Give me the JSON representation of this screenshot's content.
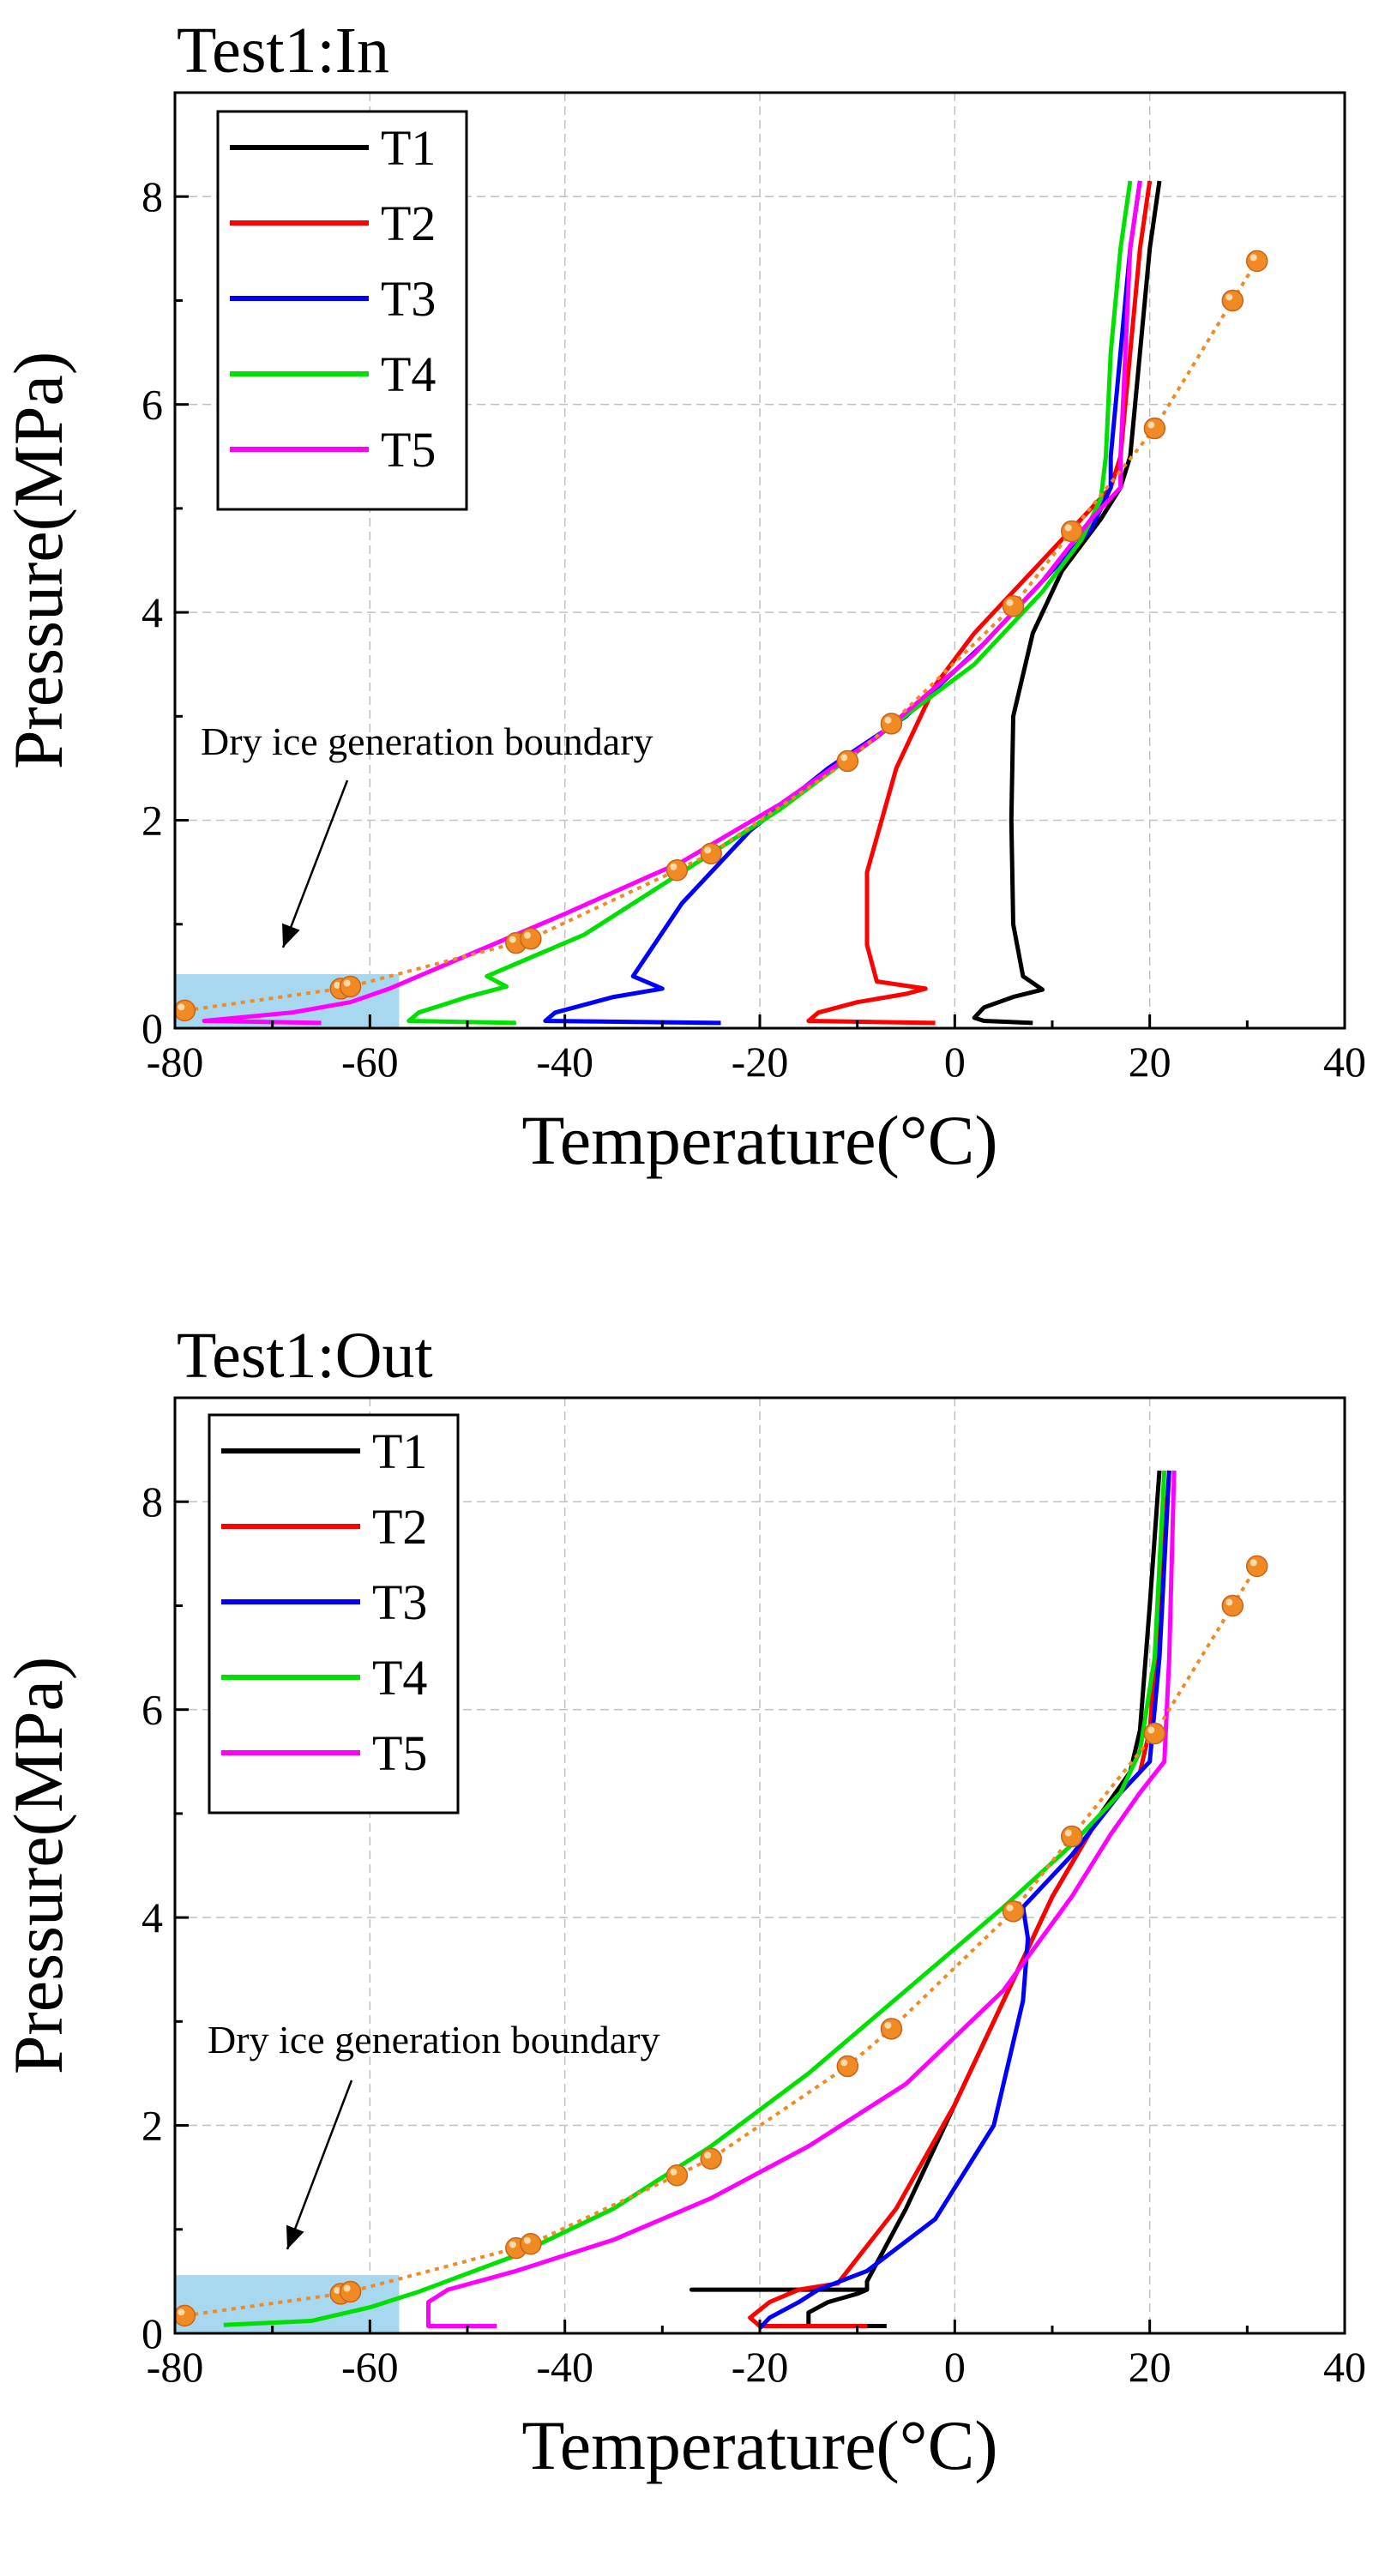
{
  "charts": [
    {
      "type": "line",
      "title": "Test1:In",
      "xlabel": "Temperature(°C)",
      "ylabel": "Pressure(MPa)",
      "xlim": [
        -80,
        40
      ],
      "ylim": [
        0,
        9
      ],
      "xticks": [
        -80,
        -60,
        -40,
        -20,
        0,
        20,
        40
      ],
      "yticks": [
        0,
        2,
        4,
        6,
        8
      ],
      "xtick_labels": [
        "-80",
        "-60",
        "-40",
        "-20",
        "0",
        "20",
        "40"
      ],
      "ytick_labels": [
        "0",
        "2",
        "4",
        "6",
        "8"
      ],
      "grid": true,
      "legend_position": "top-left",
      "annotation": "Dry ice generation boundary",
      "shaded_region": {
        "x": [
          -80,
          -57
        ],
        "y": [
          0,
          0.52
        ],
        "color": "#a8d8f0"
      },
      "boundary_series": {
        "color": "#f08a24",
        "points": [
          [
            -79,
            0.17
          ],
          [
            -63,
            0.38
          ],
          [
            -62,
            0.4
          ],
          [
            -45,
            0.82
          ],
          [
            -43.5,
            0.86
          ],
          [
            -28.5,
            1.52
          ],
          [
            -25,
            1.68
          ],
          [
            -11,
            2.57
          ],
          [
            -6.5,
            2.93
          ],
          [
            6,
            4.06
          ],
          [
            12,
            4.78
          ],
          [
            20.5,
            5.77
          ],
          [
            28.5,
            7.0
          ],
          [
            31,
            7.38
          ]
        ]
      },
      "series": [
        {
          "name": "T1",
          "color": "#000000",
          "points": [
            [
              8,
              0.05
            ],
            [
              3,
              0.07
            ],
            [
              2,
              0.1
            ],
            [
              3,
              0.2
            ],
            [
              6,
              0.3
            ],
            [
              9,
              0.37
            ],
            [
              7,
              0.5
            ],
            [
              6,
              1.0
            ],
            [
              5.8,
              2.0
            ],
            [
              6,
              3.0
            ],
            [
              8,
              3.8
            ],
            [
              11,
              4.4
            ],
            [
              15,
              4.9
            ],
            [
              17,
              5.2
            ],
            [
              18,
              5.5
            ],
            [
              19,
              6.5
            ],
            [
              20,
              7.5
            ],
            [
              21,
              8.15
            ]
          ]
        },
        {
          "name": "T2",
          "color": "#ff0000",
          "points": [
            [
              -2,
              0.05
            ],
            [
              -15,
              0.07
            ],
            [
              -14,
              0.15
            ],
            [
              -10,
              0.25
            ],
            [
              -5,
              0.33
            ],
            [
              -3,
              0.38
            ],
            [
              -8,
              0.45
            ],
            [
              -9,
              0.8
            ],
            [
              -9,
              1.5
            ],
            [
              -6,
              2.5
            ],
            [
              -2,
              3.3
            ],
            [
              2,
              3.8
            ],
            [
              7,
              4.3
            ],
            [
              12,
              4.8
            ],
            [
              16,
              5.2
            ],
            [
              17,
              5.5
            ],
            [
              18,
              6.5
            ],
            [
              19,
              7.5
            ],
            [
              20,
              8.15
            ]
          ]
        },
        {
          "name": "T3",
          "color": "#0000ff",
          "points": [
            [
              -24,
              0.05
            ],
            [
              -42,
              0.07
            ],
            [
              -41,
              0.15
            ],
            [
              -35,
              0.3
            ],
            [
              -30,
              0.38
            ],
            [
              -33,
              0.5
            ],
            [
              -28,
              1.2
            ],
            [
              -21,
              1.9
            ],
            [
              -13,
              2.5
            ],
            [
              -5,
              3.0
            ],
            [
              3,
              3.7
            ],
            [
              10,
              4.4
            ],
            [
              14,
              4.8
            ],
            [
              16,
              5.2
            ],
            [
              16,
              5.5
            ],
            [
              17,
              6.5
            ],
            [
              18,
              7.5
            ],
            [
              19,
              8.15
            ]
          ]
        },
        {
          "name": "T4",
          "color": "#00e000",
          "points": [
            [
              -45,
              0.05
            ],
            [
              -56,
              0.07
            ],
            [
              -55,
              0.15
            ],
            [
              -50,
              0.3
            ],
            [
              -46,
              0.4
            ],
            [
              -48,
              0.5
            ],
            [
              -38,
              0.9
            ],
            [
              -28,
              1.5
            ],
            [
              -18,
              2.1
            ],
            [
              -8,
              2.8
            ],
            [
              2,
              3.5
            ],
            [
              9,
              4.2
            ],
            [
              13,
              4.7
            ],
            [
              15,
              5.1
            ],
            [
              15.5,
              5.5
            ],
            [
              16,
              6.5
            ],
            [
              17,
              7.5
            ],
            [
              18,
              8.15
            ]
          ]
        },
        {
          "name": "T5",
          "color": "#ff00ff",
          "points": [
            [
              -65,
              0.05
            ],
            [
              -77,
              0.07
            ],
            [
              -68,
              0.15
            ],
            [
              -62,
              0.25
            ],
            [
              -58,
              0.38
            ],
            [
              -50,
              0.7
            ],
            [
              -40,
              1.1
            ],
            [
              -28,
              1.6
            ],
            [
              -18,
              2.15
            ],
            [
              -8,
              2.8
            ],
            [
              2,
              3.6
            ],
            [
              9,
              4.3
            ],
            [
              14,
              4.9
            ],
            [
              17,
              5.2
            ],
            [
              17,
              5.5
            ],
            [
              17.5,
              6.5
            ],
            [
              18,
              7.5
            ],
            [
              19,
              8.15
            ]
          ]
        }
      ]
    },
    {
      "type": "line",
      "title": "Test1:Out",
      "xlabel": "Temperature(°C)",
      "ylabel": "Pressure(MPa)",
      "xlim": [
        -80,
        40
      ],
      "ylim": [
        0,
        9
      ],
      "xticks": [
        -80,
        -60,
        -40,
        -20,
        0,
        20,
        40
      ],
      "yticks": [
        0,
        2,
        4,
        6,
        8
      ],
      "xtick_labels": [
        "-80",
        "-60",
        "-40",
        "-20",
        "0",
        "20",
        "40"
      ],
      "ytick_labels": [
        "0",
        "2",
        "4",
        "6",
        "8"
      ],
      "grid": true,
      "legend_position": "top-left",
      "annotation": "Dry ice generation boundary",
      "shaded_region": {
        "x": [
          -80,
          -57
        ],
        "y": [
          0,
          0.56
        ],
        "color": "#a8d8f0"
      },
      "boundary_series": {
        "color": "#f08a24",
        "points": [
          [
            -79,
            0.17
          ],
          [
            -63,
            0.38
          ],
          [
            -62,
            0.4
          ],
          [
            -45,
            0.82
          ],
          [
            -43.5,
            0.86
          ],
          [
            -28.5,
            1.52
          ],
          [
            -25,
            1.68
          ],
          [
            -11,
            2.57
          ],
          [
            -6.5,
            2.93
          ],
          [
            6,
            4.06
          ],
          [
            12,
            4.78
          ],
          [
            20.5,
            5.77
          ],
          [
            28.5,
            7.0
          ],
          [
            31,
            7.38
          ]
        ]
      },
      "series": [
        {
          "name": "T1",
          "color": "#000000",
          "points": [
            [
              -7,
              0.07
            ],
            [
              -15,
              0.07
            ],
            [
              -15,
              0.2
            ],
            [
              -13,
              0.3
            ],
            [
              -10,
              0.38
            ],
            [
              -9,
              0.42
            ],
            [
              -27,
              0.42
            ],
            [
              -9,
              0.42
            ],
            [
              -9,
              0.5
            ],
            [
              -5,
              1.2
            ],
            [
              0,
              2.2
            ],
            [
              5,
              3.2
            ],
            [
              10,
              4.2
            ],
            [
              15,
              5.0
            ],
            [
              18,
              5.4
            ],
            [
              19,
              5.8
            ],
            [
              20,
              7.0
            ],
            [
              21,
              8.3
            ]
          ]
        },
        {
          "name": "T2",
          "color": "#ff0000",
          "points": [
            [
              -9,
              0.07
            ],
            [
              -20,
              0.07
            ],
            [
              -21,
              0.15
            ],
            [
              -19,
              0.3
            ],
            [
              -16,
              0.42
            ],
            [
              -12,
              0.48
            ],
            [
              -6,
              1.2
            ],
            [
              0,
              2.2
            ],
            [
              5,
              3.2
            ],
            [
              10,
              4.2
            ],
            [
              15,
              5.0
            ],
            [
              19,
              5.4
            ],
            [
              20,
              5.8
            ],
            [
              21,
              7.0
            ],
            [
              22,
              8.3
            ]
          ]
        },
        {
          "name": "T3",
          "color": "#0000ff",
          "points": [
            [
              -20,
              0.05
            ],
            [
              -19,
              0.15
            ],
            [
              -16,
              0.3
            ],
            [
              -14,
              0.42
            ],
            [
              -9,
              0.6
            ],
            [
              -2,
              1.1
            ],
            [
              4,
              2.0
            ],
            [
              7,
              3.2
            ],
            [
              7.5,
              3.8
            ],
            [
              7,
              4.1
            ],
            [
              12,
              4.6
            ],
            [
              17,
              5.2
            ],
            [
              20,
              5.5
            ],
            [
              21,
              6.5
            ],
            [
              22,
              8.3
            ]
          ]
        },
        {
          "name": "T4",
          "color": "#00e000",
          "points": [
            [
              -75,
              0.08
            ],
            [
              -66,
              0.12
            ],
            [
              -60,
              0.25
            ],
            [
              -55,
              0.4
            ],
            [
              -45,
              0.75
            ],
            [
              -35,
              1.2
            ],
            [
              -25,
              1.8
            ],
            [
              -15,
              2.5
            ],
            [
              -5,
              3.3
            ],
            [
              5,
              4.1
            ],
            [
              12,
              4.7
            ],
            [
              17,
              5.2
            ],
            [
              19,
              5.6
            ],
            [
              20.5,
              6.5
            ],
            [
              21.5,
              8.3
            ]
          ]
        },
        {
          "name": "T5",
          "color": "#ff00ff",
          "points": [
            [
              -47,
              0.07
            ],
            [
              -54,
              0.07
            ],
            [
              -54,
              0.3
            ],
            [
              -52,
              0.42
            ],
            [
              -45,
              0.6
            ],
            [
              -35,
              0.9
            ],
            [
              -25,
              1.3
            ],
            [
              -15,
              1.8
            ],
            [
              -5,
              2.4
            ],
            [
              5,
              3.3
            ],
            [
              12,
              4.2
            ],
            [
              16,
              4.8
            ],
            [
              19,
              5.2
            ],
            [
              21.5,
              5.5
            ],
            [
              22,
              6.5
            ],
            [
              22.5,
              8.3
            ]
          ]
        }
      ]
    }
  ],
  "chart_data": [
    {
      "type": "line",
      "title": "Test1:In",
      "xlabel": "Temperature(°C)",
      "ylabel": "Pressure(MPa)",
      "xlim": [
        -80,
        40
      ],
      "ylim": [
        0,
        9
      ],
      "legend": [
        "T1",
        "T2",
        "T3",
        "T4",
        "T5"
      ]
    },
    {
      "type": "line",
      "title": "Test1:Out",
      "xlabel": "Temperature(°C)",
      "ylabel": "Pressure(MPa)",
      "xlim": [
        -80,
        40
      ],
      "ylim": [
        0,
        9
      ],
      "legend": [
        "T1",
        "T2",
        "T3",
        "T4",
        "T5"
      ]
    }
  ]
}
